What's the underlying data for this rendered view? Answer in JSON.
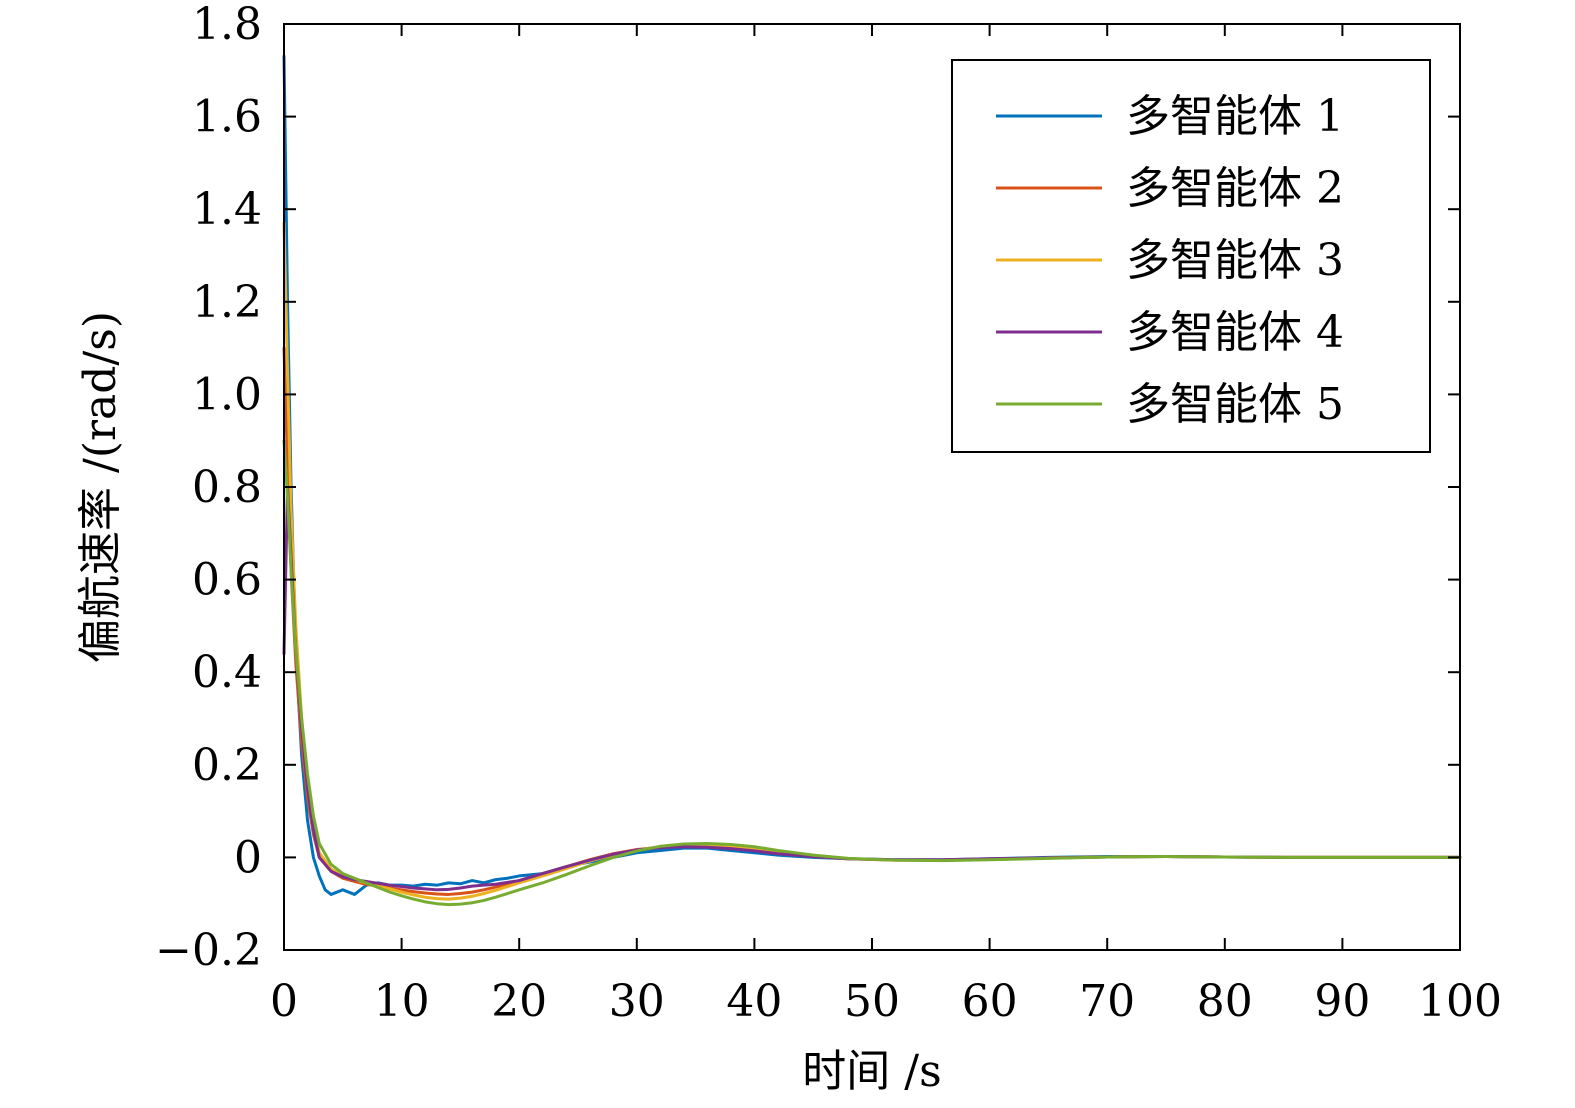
{
  "chart_data": {
    "type": "line",
    "xlabel": "时间 /s",
    "ylabel": "偏航速率 /(rad/s)",
    "xlim": [
      0,
      100
    ],
    "ylim": [
      -0.2,
      1.8
    ],
    "xticks": [
      0,
      10,
      20,
      30,
      40,
      50,
      60,
      70,
      80,
      90,
      100
    ],
    "yticks": [
      -0.2,
      0,
      0.2,
      0.4,
      0.6,
      0.8,
      1.0,
      1.2,
      1.4,
      1.6,
      1.8
    ],
    "xtick_labels": [
      "0",
      "10",
      "20",
      "30",
      "40",
      "50",
      "60",
      "70",
      "80",
      "90",
      "100"
    ],
    "ytick_labels": [
      "−0.2",
      "0",
      "0.2",
      "0.4",
      "0.6",
      "0.8",
      "1.0",
      "1.2",
      "1.4",
      "1.6",
      "1.8"
    ],
    "grid": false,
    "legend_position": "top-right",
    "series": [
      {
        "name": "多智能体 1",
        "color": "#0072BD",
        "x": [
          0,
          0.3,
          0.6,
          1,
          1.5,
          2,
          2.5,
          3,
          3.5,
          4,
          5,
          6,
          7,
          8,
          9,
          10,
          11,
          12,
          13,
          14,
          15,
          16,
          17,
          18,
          19,
          20,
          22,
          24,
          26,
          28,
          30,
          32,
          34,
          36,
          38,
          40,
          42,
          45,
          48,
          52,
          56,
          60,
          65,
          70,
          75,
          80,
          85,
          90,
          95,
          100
        ],
        "y": [
          1.73,
          1.2,
          0.8,
          0.45,
          0.22,
          0.08,
          0.0,
          -0.04,
          -0.07,
          -0.08,
          -0.07,
          -0.08,
          -0.06,
          -0.055,
          -0.06,
          -0.06,
          -0.062,
          -0.058,
          -0.06,
          -0.055,
          -0.057,
          -0.05,
          -0.055,
          -0.048,
          -0.045,
          -0.04,
          -0.035,
          -0.02,
          -0.01,
          0.0,
          0.01,
          0.015,
          0.02,
          0.02,
          0.015,
          0.01,
          0.005,
          0.0,
          -0.003,
          -0.005,
          -0.005,
          -0.003,
          0.0,
          0.002,
          0.002,
          0.001,
          0.0,
          0.0,
          0.0,
          0.0
        ]
      },
      {
        "name": "多智能体 2",
        "color": "#D95319",
        "x": [
          0,
          0.3,
          0.6,
          1,
          1.5,
          2,
          2.5,
          3,
          4,
          5,
          6,
          7,
          8,
          9,
          10,
          11,
          12,
          13,
          14,
          15,
          16,
          17,
          18,
          19,
          20,
          22,
          24,
          26,
          28,
          30,
          32,
          34,
          36,
          38,
          40,
          42,
          45,
          48,
          52,
          56,
          60,
          65,
          70,
          75,
          80,
          85,
          90,
          95,
          100
        ],
        "y": [
          1.1,
          0.85,
          0.62,
          0.42,
          0.25,
          0.13,
          0.05,
          0.0,
          -0.03,
          -0.045,
          -0.052,
          -0.058,
          -0.062,
          -0.066,
          -0.07,
          -0.074,
          -0.077,
          -0.079,
          -0.08,
          -0.078,
          -0.075,
          -0.07,
          -0.064,
          -0.057,
          -0.05,
          -0.035,
          -0.02,
          -0.005,
          0.008,
          0.017,
          0.022,
          0.024,
          0.023,
          0.02,
          0.015,
          0.009,
          0.002,
          -0.003,
          -0.006,
          -0.006,
          -0.004,
          -0.001,
          0.001,
          0.002,
          0.001,
          0.0,
          0.0,
          0.0,
          0.0
        ]
      },
      {
        "name": "多智能体 3",
        "color": "#EDB120",
        "x": [
          0,
          0.3,
          0.6,
          1,
          1.5,
          2,
          2.5,
          3,
          4,
          5,
          6,
          7,
          8,
          9,
          10,
          11,
          12,
          13,
          14,
          15,
          16,
          17,
          18,
          19,
          20,
          22,
          24,
          26,
          28,
          30,
          32,
          34,
          36,
          38,
          40,
          42,
          45,
          48,
          52,
          56,
          60,
          65,
          70,
          75,
          80,
          85,
          90,
          95,
          100
        ],
        "y": [
          1.37,
          1.05,
          0.75,
          0.5,
          0.3,
          0.16,
          0.07,
          0.01,
          -0.025,
          -0.04,
          -0.048,
          -0.055,
          -0.062,
          -0.068,
          -0.075,
          -0.081,
          -0.086,
          -0.089,
          -0.09,
          -0.088,
          -0.084,
          -0.078,
          -0.071,
          -0.063,
          -0.055,
          -0.04,
          -0.024,
          -0.008,
          0.006,
          0.016,
          0.023,
          0.026,
          0.026,
          0.023,
          0.018,
          0.011,
          0.003,
          -0.003,
          -0.006,
          -0.006,
          -0.004,
          -0.001,
          0.001,
          0.002,
          0.001,
          0.0,
          0.0,
          0.0,
          0.0
        ]
      },
      {
        "name": "多智能体 4",
        "color": "#7E2F8E",
        "x": [
          0,
          0.3,
          0.6,
          1,
          1.5,
          2,
          2.5,
          3,
          4,
          5,
          6,
          7,
          8,
          9,
          10,
          11,
          12,
          13,
          14,
          15,
          16,
          17,
          18,
          19,
          20,
          22,
          24,
          26,
          28,
          30,
          32,
          34,
          36,
          38,
          40,
          42,
          45,
          48,
          52,
          56,
          60,
          65,
          70,
          75,
          80,
          85,
          90,
          95,
          100
        ],
        "y": [
          0.44,
          0.8,
          0.65,
          0.45,
          0.28,
          0.15,
          0.06,
          0.0,
          -0.03,
          -0.042,
          -0.048,
          -0.052,
          -0.056,
          -0.06,
          -0.063,
          -0.066,
          -0.068,
          -0.07,
          -0.069,
          -0.066,
          -0.062,
          -0.06,
          -0.058,
          -0.054,
          -0.05,
          -0.035,
          -0.02,
          -0.006,
          0.007,
          0.016,
          0.021,
          0.023,
          0.022,
          0.019,
          0.014,
          0.008,
          0.002,
          -0.003,
          -0.005,
          -0.005,
          -0.003,
          -0.001,
          0.001,
          0.002,
          0.001,
          0.0,
          0.0,
          0.0,
          0.0
        ]
      },
      {
        "name": "多智能体 5",
        "color": "#77AC30",
        "x": [
          0,
          0.3,
          0.6,
          1,
          1.5,
          2,
          2.5,
          3,
          4,
          5,
          6,
          7,
          8,
          9,
          10,
          11,
          12,
          13,
          14,
          15,
          16,
          17,
          18,
          19,
          20,
          22,
          24,
          26,
          28,
          30,
          32,
          34,
          36,
          38,
          40,
          42,
          45,
          48,
          52,
          56,
          60,
          65,
          70,
          75,
          80,
          85,
          90,
          95,
          100
        ],
        "y": [
          0.9,
          0.78,
          0.62,
          0.45,
          0.3,
          0.18,
          0.09,
          0.03,
          -0.015,
          -0.035,
          -0.045,
          -0.055,
          -0.065,
          -0.075,
          -0.083,
          -0.09,
          -0.096,
          -0.1,
          -0.102,
          -0.101,
          -0.098,
          -0.093,
          -0.086,
          -0.078,
          -0.07,
          -0.055,
          -0.037,
          -0.018,
          0.0,
          0.014,
          0.024,
          0.029,
          0.03,
          0.028,
          0.023,
          0.015,
          0.005,
          -0.002,
          -0.006,
          -0.007,
          -0.005,
          -0.002,
          0.001,
          0.002,
          0.001,
          0.0,
          0.0,
          0.0,
          0.0
        ]
      }
    ]
  }
}
